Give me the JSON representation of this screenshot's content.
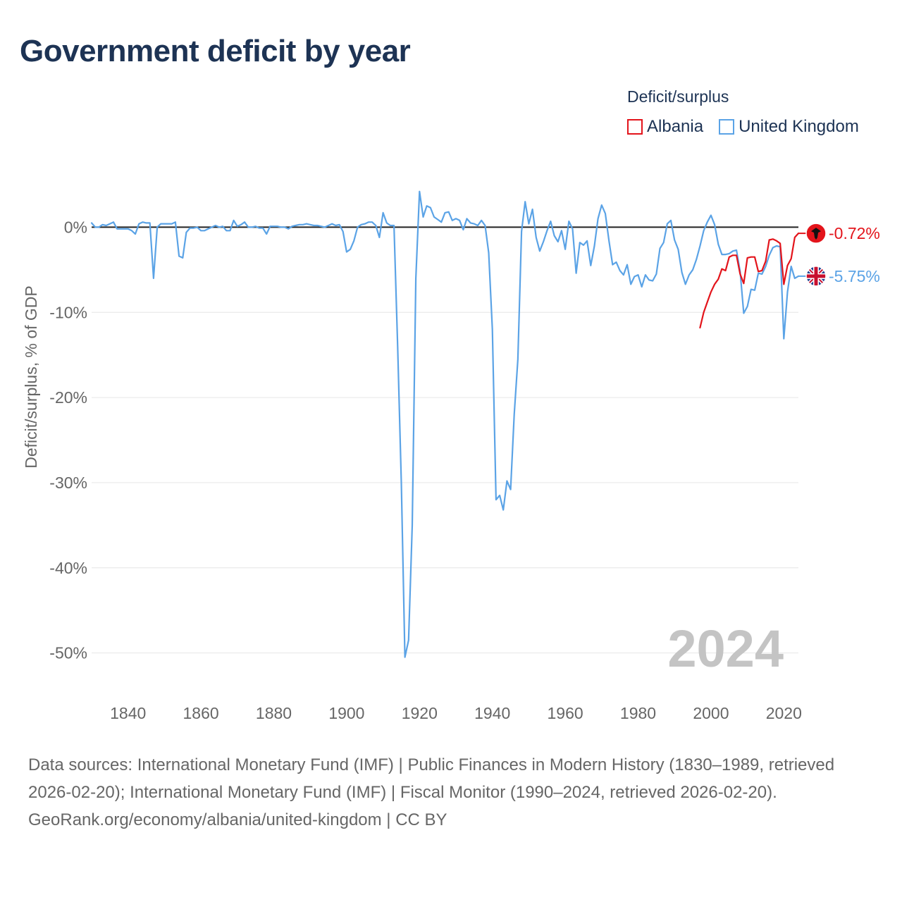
{
  "title": "Government deficit by year",
  "legend": {
    "title": "Deficit/surplus",
    "items": [
      {
        "label": "Albania",
        "color": "#e3141b"
      },
      {
        "label": "United Kingdom",
        "color": "#5ba3e6"
      }
    ]
  },
  "footer": {
    "sources": "Data sources: International Monetary Fund (IMF) | Public Finances in Modern History (1830–1989, retrieved 2026-02-20); International Monetary Fund (IMF) | Fiscal Monitor (1990–2024, retrieved 2026-02-20).",
    "credit": "GeoRank.org/economy/albania/united-kingdom | CC BY"
  },
  "chart_data": {
    "type": "line",
    "title": "Government deficit by year",
    "xlabel": "",
    "ylabel": "Deficit/surplus, % of GDP",
    "xlim": [
      1830,
      2024
    ],
    "ylim": [
      -55,
      5
    ],
    "xticks": [
      1840,
      1860,
      1880,
      1900,
      1920,
      1940,
      1960,
      1980,
      2000,
      2020
    ],
    "yticks": [
      0,
      -10,
      -20,
      -30,
      -40,
      -50
    ],
    "ytick_labels": [
      "0%",
      "-10%",
      "-20%",
      "-30%",
      "-40%",
      "-50%"
    ],
    "grid": true,
    "watermark_year": "2024",
    "series": [
      {
        "name": "United Kingdom",
        "color": "#5ba3e6",
        "end_label": "-5.75%",
        "x": [
          1830,
          1831,
          1832,
          1833,
          1834,
          1835,
          1836,
          1837,
          1838,
          1839,
          1840,
          1841,
          1842,
          1843,
          1844,
          1845,
          1846,
          1847,
          1848,
          1849,
          1850,
          1851,
          1852,
          1853,
          1854,
          1855,
          1856,
          1857,
          1858,
          1859,
          1860,
          1861,
          1862,
          1863,
          1864,
          1865,
          1866,
          1867,
          1868,
          1869,
          1870,
          1871,
          1872,
          1873,
          1874,
          1875,
          1876,
          1877,
          1878,
          1879,
          1880,
          1881,
          1882,
          1883,
          1884,
          1885,
          1886,
          1887,
          1888,
          1889,
          1890,
          1891,
          1892,
          1893,
          1894,
          1895,
          1896,
          1897,
          1898,
          1899,
          1900,
          1901,
          1902,
          1903,
          1904,
          1905,
          1906,
          1907,
          1908,
          1909,
          1910,
          1911,
          1912,
          1913,
          1914,
          1915,
          1916,
          1917,
          1918,
          1919,
          1920,
          1921,
          1922,
          1923,
          1924,
          1925,
          1926,
          1927,
          1928,
          1929,
          1930,
          1931,
          1932,
          1933,
          1934,
          1935,
          1936,
          1937,
          1938,
          1939,
          1940,
          1941,
          1942,
          1943,
          1944,
          1945,
          1946,
          1947,
          1948,
          1949,
          1950,
          1951,
          1952,
          1953,
          1954,
          1955,
          1956,
          1957,
          1958,
          1959,
          1960,
          1961,
          1962,
          1963,
          1964,
          1965,
          1966,
          1967,
          1968,
          1969,
          1970,
          1971,
          1972,
          1973,
          1974,
          1975,
          1976,
          1977,
          1978,
          1979,
          1980,
          1981,
          1982,
          1983,
          1984,
          1985,
          1986,
          1987,
          1988,
          1989,
          1990,
          1991,
          1992,
          1993,
          1994,
          1995,
          1996,
          1997,
          1998,
          1999,
          2000,
          2001,
          2002,
          2003,
          2004,
          2005,
          2006,
          2007,
          2008,
          2009,
          2010,
          2011,
          2012,
          2013,
          2014,
          2015,
          2016,
          2017,
          2018,
          2019,
          2020,
          2021,
          2022,
          2023,
          2024
        ],
        "values": [
          0.5,
          0,
          0,
          0.3,
          0.2,
          0.4,
          0.6,
          -0.2,
          -0.2,
          -0.2,
          -0.2,
          -0.4,
          -0.8,
          0.4,
          0.6,
          0.5,
          0.5,
          -6.0,
          0,
          0.4,
          0.4,
          0.4,
          0.4,
          0.6,
          -3.4,
          -3.6,
          -0.6,
          -0.1,
          -0.1,
          0,
          -0.4,
          -0.4,
          -0.2,
          0,
          0.2,
          0,
          0.1,
          -0.4,
          -0.4,
          0.8,
          0.1,
          0.3,
          0.6,
          0,
          0,
          0.1,
          -0.1,
          -0.1,
          -0.8,
          0.1,
          0.1,
          0.1,
          0,
          0,
          -0.2,
          0.1,
          0.2,
          0.3,
          0.3,
          0.4,
          0.3,
          0.2,
          0.2,
          0.1,
          0,
          0.2,
          0.4,
          0.2,
          0.3,
          -0.5,
          -2.9,
          -2.6,
          -1.6,
          0,
          0.3,
          0.4,
          0.6,
          0.6,
          0.2,
          -1.2,
          1.7,
          0.5,
          0.2,
          0.2,
          -14,
          -30,
          -50.5,
          -48.5,
          -35,
          -6,
          4.2,
          1.2,
          2.5,
          2.3,
          1.2,
          0.9,
          0.6,
          1.7,
          1.8,
          0.8,
          1.0,
          0.8,
          -0.3,
          1.0,
          0.5,
          0.4,
          0.2,
          0.8,
          0.2,
          -3.0,
          -12,
          -32,
          -31.5,
          -33.2,
          -29.8,
          -30.8,
          -22,
          -15.5,
          -0.5,
          3.0,
          0.4,
          2.1,
          -1.2,
          -2.8,
          -1.7,
          -0.4,
          0.7,
          -1.0,
          -1.7,
          -0.4,
          -2.6,
          0.7,
          -0.2,
          -5.4,
          -1.8,
          -2.1,
          -1.6,
          -4.5,
          -2.2,
          1.0,
          2.6,
          1.6,
          -1.6,
          -4.4,
          -4.1,
          -5.1,
          -5.6,
          -4.4,
          -6.7,
          -5.8,
          -5.6,
          -7.0,
          -5.6,
          -6.2,
          -6.3,
          -5.5,
          -2.5,
          -1.8,
          0.4,
          0.8,
          -1.5,
          -2.6,
          -5.3,
          -6.7,
          -5.6,
          -5.0,
          -3.8,
          -2.2,
          -0.4,
          0.6,
          1.4,
          0.3,
          -2.0,
          -3.2,
          -3.2,
          -3.1,
          -2.8,
          -2.7,
          -5.2,
          -10.1,
          -9.3,
          -7.3,
          -7.4,
          -5.4,
          -5.5,
          -4.6,
          -3.3,
          -2.4,
          -2.2,
          -2.3,
          -13.1,
          -7.6,
          -4.6,
          -6.0,
          -5.75
        ]
      },
      {
        "name": "Albania",
        "color": "#e3141b",
        "end_label": "-0.72%",
        "x": [
          1997,
          1998,
          1999,
          2000,
          2001,
          2002,
          2003,
          2004,
          2005,
          2006,
          2007,
          2008,
          2009,
          2010,
          2011,
          2012,
          2013,
          2014,
          2015,
          2016,
          2017,
          2018,
          2019,
          2020,
          2021,
          2022,
          2023,
          2024
        ],
        "values": [
          -11.8,
          -10.0,
          -8.8,
          -7.6,
          -6.7,
          -6.1,
          -4.9,
          -5.1,
          -3.5,
          -3.3,
          -3.3,
          -5.5,
          -6.6,
          -3.6,
          -3.5,
          -3.5,
          -5.2,
          -5.1,
          -4.0,
          -1.5,
          -1.4,
          -1.6,
          -1.9,
          -6.7,
          -4.5,
          -3.7,
          -1.2,
          -0.72
        ]
      }
    ]
  }
}
